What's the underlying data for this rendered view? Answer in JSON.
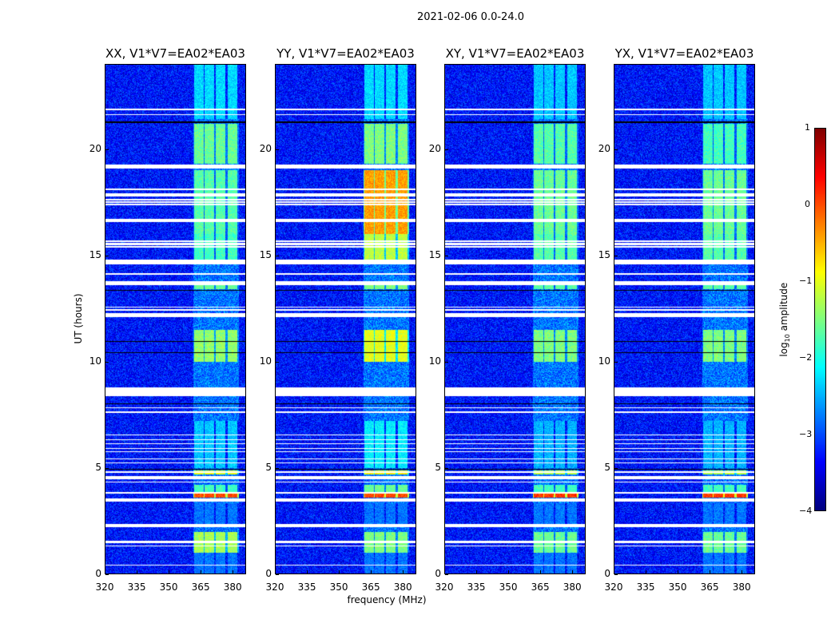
{
  "chart_data": {
    "type": "heatmap",
    "suptitle": "2021-02-06 0.0-24.0",
    "xlabel": "frequency (MHz)",
    "ylabel": "UT (hours)",
    "xlim": [
      320,
      386.3
    ],
    "ylim": [
      0,
      24
    ],
    "xticks": [
      "320",
      "335",
      "350",
      "365",
      "380"
    ],
    "xtick_values": [
      320,
      335,
      350,
      365,
      380
    ],
    "yticks": [
      "0",
      "5",
      "10",
      "15",
      "20"
    ],
    "ytick_values": [
      0,
      5,
      10,
      15,
      20
    ],
    "panels": [
      {
        "title": "XX, V1*V7=EA02*EA03",
        "key": 0
      },
      {
        "title": "YY, V1*V7=EA02*EA03",
        "key": 1
      },
      {
        "title": "XY, V1*V7=EA02*EA03",
        "key": 2
      },
      {
        "title": "YX, V1*V7=EA02*EA03",
        "key": 3
      }
    ],
    "colorbar": {
      "label": "log10 amplitude",
      "label_main": "log",
      "label_sub": "10",
      "label_rest": " amplitude",
      "range": [
        -4,
        1
      ],
      "ticks": [
        "1",
        "0",
        "−1",
        "−2",
        "−3",
        "−4"
      ],
      "tick_values": [
        1,
        0,
        -1,
        -2,
        -3,
        -4
      ],
      "colormap": "jet"
    },
    "background_level": -3.3,
    "subbands_mhz": [
      [
        361.8,
        366.3
      ],
      [
        367.0,
        371.3
      ],
      [
        372.0,
        376.6
      ],
      [
        377.5,
        382.3
      ]
    ],
    "emission": [
      {
        "t": [
          21.4,
          24.0
        ],
        "levels": [
          -2.3,
          -2.3,
          -2.4,
          -2.4
        ]
      },
      {
        "t": [
          19.3,
          21.2
        ],
        "levels": [
          -1.6,
          -1.5,
          -1.7,
          -1.8
        ]
      },
      {
        "t": [
          16.0,
          19.0
        ],
        "levels": [
          -1.7,
          -0.4,
          -1.6,
          -1.6
        ]
      },
      {
        "t": [
          14.6,
          16.0
        ],
        "levels": [
          -1.8,
          -1.2,
          -1.7,
          -1.7
        ]
      },
      {
        "t": [
          13.4,
          13.6
        ],
        "levels": [
          -1.6,
          -1.5,
          -1.7,
          -1.7
        ]
      },
      {
        "t": [
          10.0,
          11.5
        ],
        "levels": [
          -1.4,
          -1.0,
          -1.5,
          -1.5
        ]
      },
      {
        "t": [
          5.0,
          7.2
        ],
        "levels": [
          -2.4,
          -2.2,
          -2.5,
          -2.5
        ]
      },
      {
        "t": [
          4.7,
          4.9
        ],
        "levels": [
          -1.0,
          -0.8,
          -1.2,
          -1.2
        ]
      },
      {
        "t": [
          3.85,
          4.2
        ],
        "levels": [
          -1.8,
          -1.6,
          -1.8,
          -1.8
        ]
      },
      {
        "t": [
          3.6,
          3.85
        ],
        "levels": [
          0.0,
          0.0,
          0.1,
          0.1
        ]
      },
      {
        "t": [
          1.0,
          2.0
        ],
        "levels": [
          -1.3,
          -1.5,
          -1.6,
          -1.6
        ]
      },
      {
        "t": [
          0.0,
          1.0
        ],
        "levels": [
          -2.8,
          -2.8,
          -2.8,
          -2.8
        ]
      },
      {
        "t": [
          2.2,
          3.35
        ],
        "levels": [
          -2.8,
          -2.8,
          -2.8,
          -2.8
        ]
      }
    ],
    "flagged_hours": [
      [
        21.83,
        0.05
      ],
      [
        21.6,
        0.05
      ],
      [
        19.09,
        0.19
      ],
      [
        18.08,
        0.05
      ],
      [
        17.85,
        0.05
      ],
      [
        17.78,
        0.1
      ],
      [
        17.59,
        0.05
      ],
      [
        17.48,
        0.05
      ],
      [
        17.36,
        0.05
      ],
      [
        16.58,
        0.15
      ],
      [
        15.64,
        0.07
      ],
      [
        15.49,
        0.1
      ],
      [
        15.38,
        0.07
      ],
      [
        14.59,
        0.19
      ],
      [
        14.1,
        0.05
      ],
      [
        13.58,
        0.22
      ],
      [
        12.53,
        0.05
      ],
      [
        12.41,
        0.05
      ],
      [
        12.08,
        0.19
      ],
      [
        8.36,
        0.42
      ],
      [
        7.8,
        0.05
      ],
      [
        7.57,
        0.1
      ],
      [
        6.53,
        0.05
      ],
      [
        6.3,
        0.05
      ],
      [
        6.11,
        0.05
      ],
      [
        5.89,
        0.05
      ],
      [
        5.74,
        0.05
      ],
      [
        5.4,
        0.05
      ],
      [
        5.21,
        0.05
      ],
      [
        4.76,
        0.1
      ],
      [
        4.46,
        0.15
      ],
      [
        4.31,
        0.05
      ],
      [
        3.79,
        0.06
      ],
      [
        3.41,
        0.15
      ],
      [
        2.21,
        0.15
      ],
      [
        1.46,
        0.1
      ],
      [
        1.31,
        0.05
      ],
      [
        0.41,
        0.05
      ]
    ],
    "black_lines_hours": [
      21.26,
      13.35,
      10.95,
      10.42,
      8.02,
      4.95,
      3.52
    ]
  }
}
